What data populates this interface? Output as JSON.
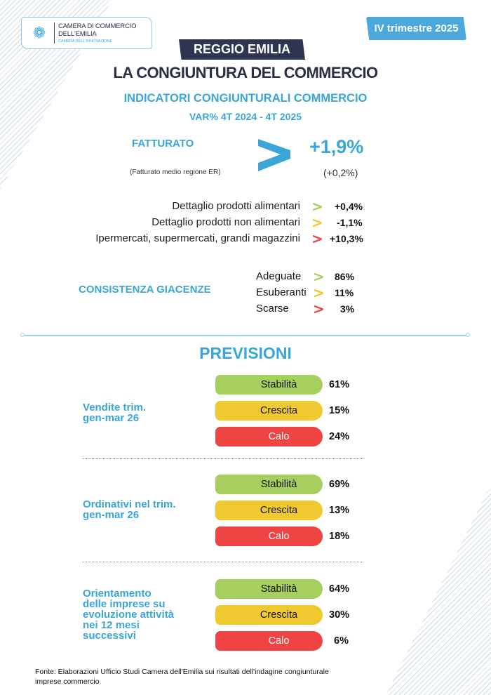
{
  "header": {
    "logo": {
      "line1": "CAMERA DI COMMERCIO",
      "line2": "DELL'EMILIA",
      "tagline": "CAMERA DELL'INNOVAZIONE",
      "icon": "camera-logo-icon"
    },
    "period_badge": "IV trimestre 2025",
    "region": "REGGIO EMILIA",
    "title": "LA CONGIUNTURA DEL COMMERCIO",
    "subtitle": "INDICATORI CONGIUNTURALI COMMERCIO",
    "variation": "VAR% 4T 2024 - 4T 2025"
  },
  "colors": {
    "accent": "#3aa6d8",
    "dark": "#2e3550",
    "green": "#a6cf5f",
    "yellow": "#f0c830",
    "red": "#ee4444"
  },
  "fatturato": {
    "label": "FATTURATO",
    "value": "+1,9%",
    "region_note": "(Fatturato medio regione ER)",
    "region_value": "(+0,2%)",
    "arrow_icon": "chevron-right-icon",
    "rows": [
      {
        "label": "Dettaglio prodotti alimentari",
        "value": "+0,4%",
        "color": "#a6cf5f"
      },
      {
        "label": "Dettaglio prodotti non alimentari",
        "value": "-1,1%",
        "color": "#f0c830"
      },
      {
        "label": "Ipermercati, supermercati, grandi magazzini",
        "value": "+10,3%",
        "color": "#ee4444"
      }
    ]
  },
  "giacenze": {
    "label": "CONSISTENZA GIACENZE",
    "rows": [
      {
        "label": "Adeguate",
        "value": "86%",
        "color": "#a6cf5f"
      },
      {
        "label": "Esuberanti",
        "value": "11%",
        "color": "#f0c830"
      },
      {
        "label": "Scarse",
        "value": "3%",
        "color": "#ee4444"
      }
    ]
  },
  "previsioni": {
    "title": "PREVISIONI",
    "groups": [
      {
        "label_lines": [
          "Vendite trim.",
          "gen-mar 26"
        ],
        "bars": [
          {
            "label": "Stabilità",
            "value": "61%"
          },
          {
            "label": "Crescita",
            "value": "15%"
          },
          {
            "label": "Calo",
            "value": "24%"
          }
        ]
      },
      {
        "label_lines": [
          "Ordinativi nel trim.",
          "gen-mar 26"
        ],
        "bars": [
          {
            "label": "Stabilità",
            "value": "69%"
          },
          {
            "label": "Crescita",
            "value": "13%"
          },
          {
            "label": "Calo",
            "value": "18%"
          }
        ]
      },
      {
        "label_lines": [
          "Orientamento",
          "delle imprese su",
          "evoluzione attività",
          "nei 12 mesi",
          "successivi"
        ],
        "bars": [
          {
            "label": "Stabilità",
            "value": "64%"
          },
          {
            "label": "Crescita",
            "value": "30%"
          },
          {
            "label": "Calo",
            "value": "6%"
          }
        ]
      }
    ]
  },
  "footer": {
    "line1": "Fonte: Elaborazioni Ufficio Studi Camera dell'Emilia sui risultati dell'indagine congiunturale",
    "line2": "imprese commercio"
  }
}
